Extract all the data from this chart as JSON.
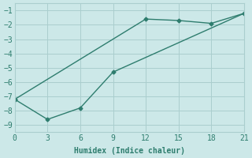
{
  "line1_x": [
    0,
    12,
    15,
    18,
    21
  ],
  "line1_y": [
    -7.2,
    -1.6,
    -1.7,
    -1.9,
    -1.2
  ],
  "line2_x": [
    0,
    3,
    6,
    9,
    21
  ],
  "line2_y": [
    -7.2,
    -8.6,
    -7.8,
    -5.3,
    -1.2
  ],
  "color": "#2e7d6e",
  "bg_color": "#cce8e8",
  "grid_color": "#aacece",
  "xlabel": "Humidex (Indice chaleur)",
  "xlim": [
    0,
    21
  ],
  "ylim": [
    -9.5,
    -0.5
  ],
  "xticks": [
    0,
    3,
    6,
    9,
    12,
    15,
    18,
    21
  ],
  "yticks": [
    -1,
    -2,
    -3,
    -4,
    -5,
    -6,
    -7,
    -8,
    -9
  ],
  "xlabel_fontsize": 7,
  "tick_fontsize": 7,
  "marker": "D",
  "marker_size": 2.5,
  "linewidth": 1.0
}
